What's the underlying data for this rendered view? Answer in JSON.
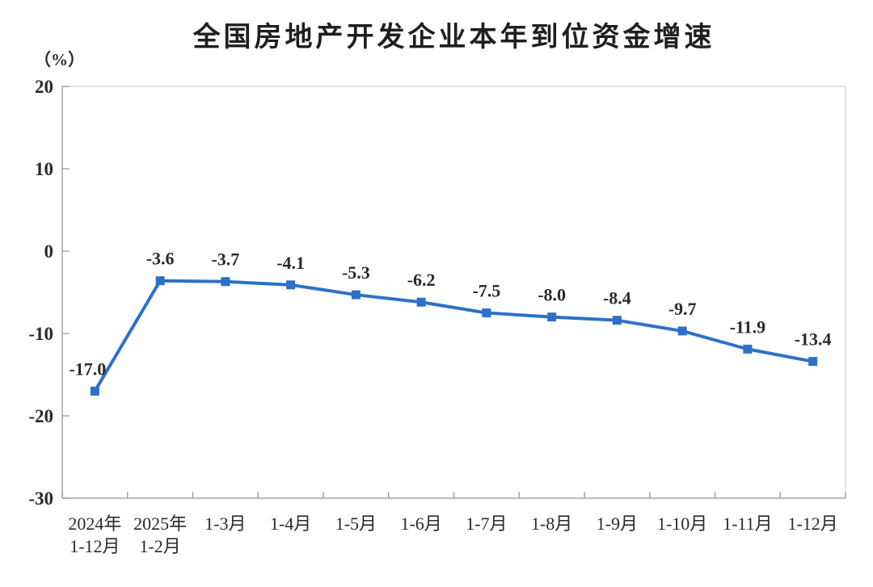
{
  "header": {
    "title": "全国房地产开发企业本年到位资金增速"
  },
  "chart_data": {
    "type": "line",
    "title": "全国房地产开发企业本年到位资金增速",
    "ylabel": "（%）",
    "xlabel": "",
    "categories": [
      "2024年\n1-12月",
      "2025年\n1-2月",
      "1-3月",
      "1-4月",
      "1-5月",
      "1-6月",
      "1-7月",
      "1-8月",
      "1-9月",
      "1-10月",
      "1-11月",
      "1-12月"
    ],
    "values": [
      -17.0,
      -3.6,
      -3.7,
      -4.1,
      -5.3,
      -6.2,
      -7.5,
      -8.0,
      -8.4,
      -9.7,
      -11.9,
      -13.4
    ],
    "data_labels": [
      "-17.0",
      "-3.6",
      "-3.7",
      "-4.1",
      "-5.3",
      "-6.2",
      "-7.5",
      "-8.0",
      "-8.4",
      "-9.7",
      "-11.9",
      "-13.4"
    ],
    "ylim": [
      -30,
      20
    ],
    "yticks": [
      20,
      10,
      0,
      -10,
      -20,
      -30
    ],
    "grid": false,
    "legend": "none",
    "marker": "square",
    "colors": {
      "series": "#2C71C6",
      "label_text": "#2a2a2a",
      "axis": "#A6A6A6",
      "plot_border": "#D9D9D9",
      "title_text": "#1f1f1f"
    }
  }
}
